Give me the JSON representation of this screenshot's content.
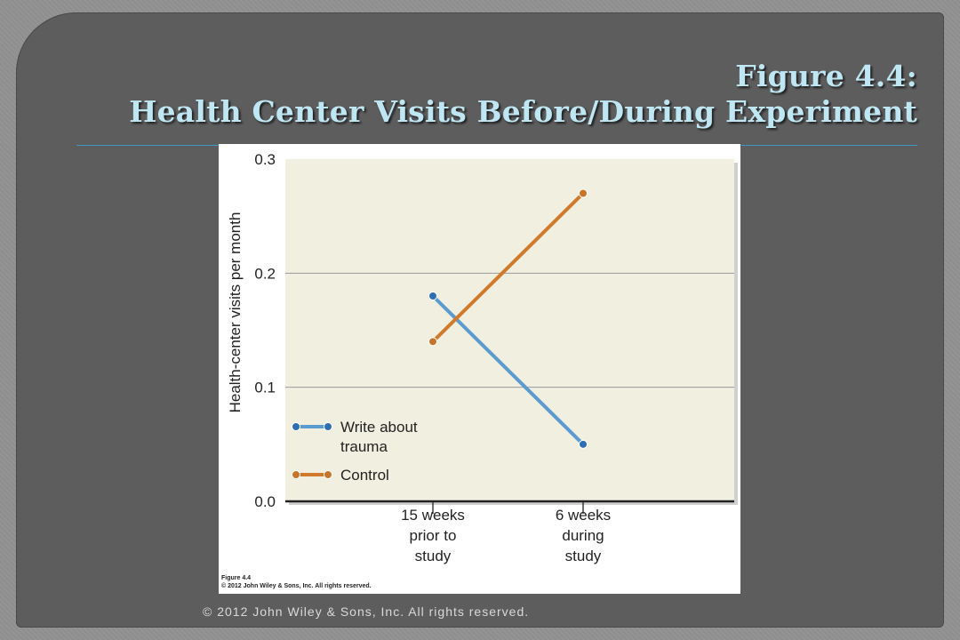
{
  "slide": {
    "title_line1": "Figure 4.4:",
    "title_line2": "Health Center Visits Before/During Experiment",
    "footer": "© 2012 John Wiley & Sons, Inc. All rights reserved.",
    "accent_color": "#bfe6f3"
  },
  "figure": {
    "caption_line1": "Figure 4.4",
    "caption_line2": "© 2012 John Wiley & Sons, Inc. All rights reserved."
  },
  "chart_data": {
    "type": "line",
    "title": "",
    "ylabel": "Health-center visits per month",
    "xlabel": "",
    "categories": [
      "15 weeks prior to study",
      "6 weeks during study"
    ],
    "category_lines": [
      [
        "15 weeks",
        "prior to",
        "study"
      ],
      [
        "6 weeks",
        "during",
        "study"
      ]
    ],
    "ylim": [
      0.0,
      0.3
    ],
    "yticks": [
      "0.0",
      "0.1",
      "0.2",
      "0.3"
    ],
    "grid": true,
    "legend_position": "bottom-left",
    "series": [
      {
        "name": "Write about trauma",
        "legend_lines": [
          "Write about",
          "trauma"
        ],
        "values": [
          0.18,
          0.05
        ],
        "color": "#5b9bd0",
        "point_color": "#2d6fb0"
      },
      {
        "name": "Control",
        "legend_lines": [
          "Control"
        ],
        "values": [
          0.14,
          0.27
        ],
        "color": "#d27a2c",
        "point_color": "#c8742a"
      }
    ]
  }
}
